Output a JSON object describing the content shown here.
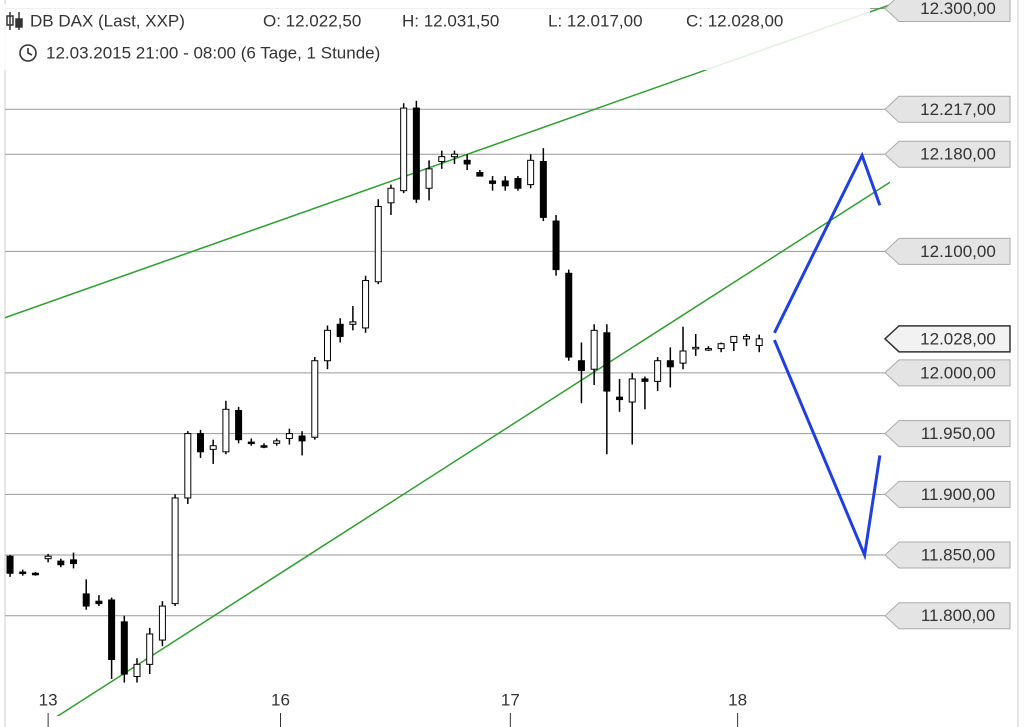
{
  "chart_data": {
    "type": "candlestick",
    "title": "DB DAX (Last, XXP)",
    "ohlc_labels": [
      "O: 12.022,50",
      "H: 12.031,50",
      "L: 12.017,00",
      "C: 12.028,00"
    ],
    "subtitle": "12.03.2015 21:00 - 08:00 (6 Tage, 1 Stunde)",
    "x": [
      0,
      1,
      2,
      3,
      4,
      5,
      6,
      7,
      8,
      9,
      10,
      11,
      12,
      13,
      14,
      15,
      16,
      17,
      18,
      19,
      20,
      21,
      22,
      23,
      24,
      25,
      26,
      27,
      28,
      29,
      30,
      31,
      32,
      33,
      34,
      35,
      36,
      37,
      38,
      39,
      40,
      41,
      42,
      43,
      44,
      45,
      46,
      47,
      48,
      49,
      50,
      51,
      52,
      53,
      54,
      55,
      56,
      57,
      58,
      59
    ],
    "open": [
      11849,
      11836,
      11835,
      11847,
      11845,
      11846,
      11818,
      11812,
      11813,
      11795,
      11750,
      11760,
      11780,
      11810,
      11897,
      11950,
      11937,
      11935,
      11969,
      11943,
      11940,
      11942,
      11946,
      11948,
      11947,
      12010,
      12040,
      12040,
      12037,
      12075,
      12140,
      12150,
      12218,
      12152,
      12174,
      12178,
      12175,
      12165,
      12158,
      12158,
      12160,
      12155,
      12174,
      12125,
      12082,
      12010,
      12003,
      12033,
      11980,
      11976,
      11995,
      11993,
      12010,
      12008,
      12020,
      12020,
      12020,
      12025,
      12028,
      12022.5
    ],
    "high": [
      11850,
      11838,
      11836,
      11851,
      11847,
      11852,
      11830,
      11817,
      11815,
      11800,
      11765,
      11790,
      11812,
      11900,
      11952,
      11953,
      11945,
      11977,
      11972,
      11946,
      11942,
      11946,
      11954,
      11952,
      12013,
      12039,
      12045,
      12055,
      12080,
      12143,
      12155,
      12222,
      12224,
      12175,
      12183,
      12183,
      12180,
      12167,
      12162,
      12162,
      12162,
      12180,
      12185,
      12130,
      12085,
      12025,
      12040,
      12040,
      11995,
      12000,
      11997,
      12013,
      12021,
      12038,
      12032,
      12022,
      12025,
      12030,
      12032,
      12031.5
    ],
    "low": [
      11832,
      11833,
      11833,
      11844,
      11840,
      11839,
      11805,
      11808,
      11748,
      11745,
      11745,
      11752,
      11775,
      11808,
      11892,
      11930,
      11925,
      11933,
      11942,
      11940,
      11938,
      11940,
      11941,
      11932,
      11945,
      12003,
      12025,
      12035,
      12033,
      12073,
      12130,
      12148,
      12140,
      12142,
      12168,
      12172,
      12167,
      12162,
      12150,
      12150,
      12150,
      12152,
      12125,
      12080,
      12010,
      11975,
      11990,
      11933,
      11968,
      11941,
      11970,
      11985,
      11988,
      12003,
      12014,
      12018,
      12017,
      12018,
      12022,
      12017
    ],
    "close": [
      11835,
      11835,
      11834,
      11849,
      11842,
      11843,
      11808,
      11810,
      11764,
      11752,
      11760,
      11785,
      11808,
      11897,
      11950,
      11935,
      11940,
      11970,
      11945,
      11942,
      11939,
      11944,
      11950,
      11944,
      12010,
      12035,
      12030,
      12042,
      12076,
      12137,
      12152,
      12218,
      12143,
      12168,
      12178,
      12180,
      12172,
      12162,
      12156,
      12154,
      12152,
      12175,
      12128,
      12085,
      12013,
      12002,
      12035,
      11985,
      11978,
      11995,
      11993,
      12010,
      12005,
      12018,
      12021,
      12020,
      12024,
      12030,
      12030,
      12028
    ],
    "xlim": [
      -0.79,
      69.3
    ],
    "xticks": [
      {
        "value": 3,
        "label": "13"
      },
      {
        "value": 21.3,
        "label": "16"
      },
      {
        "value": 39.4,
        "label": "17"
      },
      {
        "value": 57.3,
        "label": "18"
      }
    ],
    "ylim": [
      11715,
      12307
    ],
    "yticks": [
      {
        "value": 12300,
        "label": "12.300,00"
      },
      {
        "value": 12217,
        "label": "12.217,00"
      },
      {
        "value": 12180,
        "label": "12.180,00"
      },
      {
        "value": 12100,
        "label": "12.100,00"
      },
      {
        "value": 12000,
        "label": "12.000,00"
      },
      {
        "value": 11950,
        "label": "11.950,00"
      },
      {
        "value": 11900,
        "label": "11.900,00"
      },
      {
        "value": 11850,
        "label": "11.850,00"
      },
      {
        "value": 11800,
        "label": "11.800,00"
      }
    ],
    "last_price": {
      "value": 12028,
      "label": "12.028,00"
    },
    "grid": true,
    "trendlines": [
      {
        "color": "#2ca02c",
        "x": [
          -0.79,
          69.3
        ],
        "y": [
          12044,
          12303
        ]
      },
      {
        "color": "#2ca02c",
        "x": [
          2.8,
          70.8
        ],
        "y": [
          11711,
          12167
        ]
      },
      {
        "color": "#1f3fe0",
        "x": [
          60.2,
          67.1,
          68.5
        ],
        "y": [
          12033,
          12179,
          12138
        ]
      },
      {
        "color": "#1f3fe0",
        "x": [
          60.2,
          67.3,
          68.5
        ],
        "y": [
          12027,
          11850,
          11932
        ]
      }
    ]
  }
}
